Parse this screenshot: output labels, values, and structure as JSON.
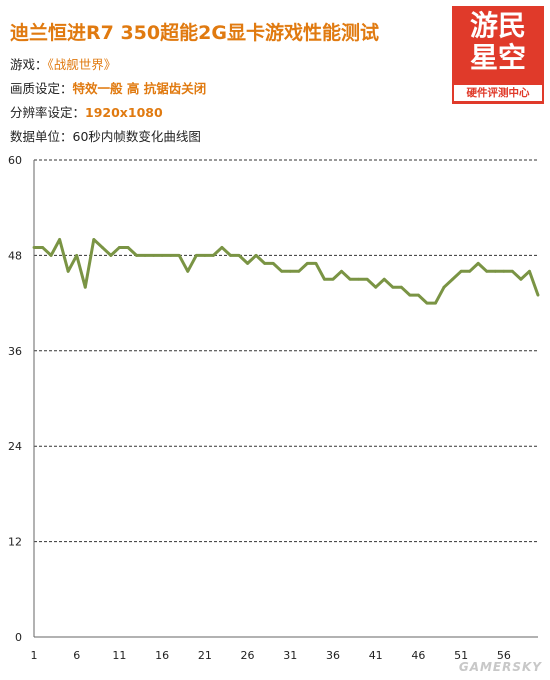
{
  "header": {
    "title": "迪兰恒进R7 350超能2G显卡游戏性能测试",
    "game_label": "游戏：",
    "game_value": "《战舰世界》",
    "quality_label": "画质设定：",
    "quality_value": "特效一般  高  抗锯齿关闭",
    "resolution_label": "分辨率设定：",
    "resolution_value": "1920x1080",
    "unit_text": "数据单位：60秒内帧数变化曲线图"
  },
  "logo": {
    "line1": "游民",
    "line2": "星空",
    "subtitle": "硬件评测中心"
  },
  "watermark": "GAMERSKY",
  "colors": {
    "accent": "#e07a10",
    "line": "#7a9444",
    "logo_red": "#e03a2a"
  },
  "chart_data": {
    "type": "line",
    "title": "",
    "xlabel": "",
    "ylabel": "",
    "ylim": [
      0,
      60
    ],
    "xlim": [
      1,
      60
    ],
    "yticks": [
      0,
      12,
      24,
      36,
      48,
      60
    ],
    "xticks": [
      1,
      6,
      11,
      16,
      21,
      26,
      31,
      36,
      41,
      46,
      51,
      56
    ],
    "grid": "horizontal-dashed",
    "x": [
      1,
      2,
      3,
      4,
      5,
      6,
      7,
      8,
      9,
      10,
      11,
      12,
      13,
      14,
      15,
      16,
      17,
      18,
      19,
      20,
      21,
      22,
      23,
      24,
      25,
      26,
      27,
      28,
      29,
      30,
      31,
      32,
      33,
      34,
      35,
      36,
      37,
      38,
      39,
      40,
      41,
      42,
      43,
      44,
      45,
      46,
      47,
      48,
      49,
      50,
      51,
      52,
      53,
      54,
      55,
      56,
      57,
      58,
      59,
      60
    ],
    "series": [
      {
        "values": [
          49,
          49,
          48,
          50,
          46,
          48,
          44,
          50,
          49,
          48,
          49,
          49,
          48,
          48,
          48,
          48,
          48,
          48,
          46,
          48,
          48,
          48,
          49,
          48,
          48,
          47,
          48,
          47,
          47,
          46,
          46,
          46,
          47,
          47,
          45,
          45,
          46,
          45,
          45,
          45,
          44,
          45,
          44,
          44,
          43,
          43,
          42,
          42,
          44,
          45,
          46,
          46,
          47,
          46,
          46,
          46,
          46,
          45,
          46,
          43
        ]
      }
    ]
  }
}
